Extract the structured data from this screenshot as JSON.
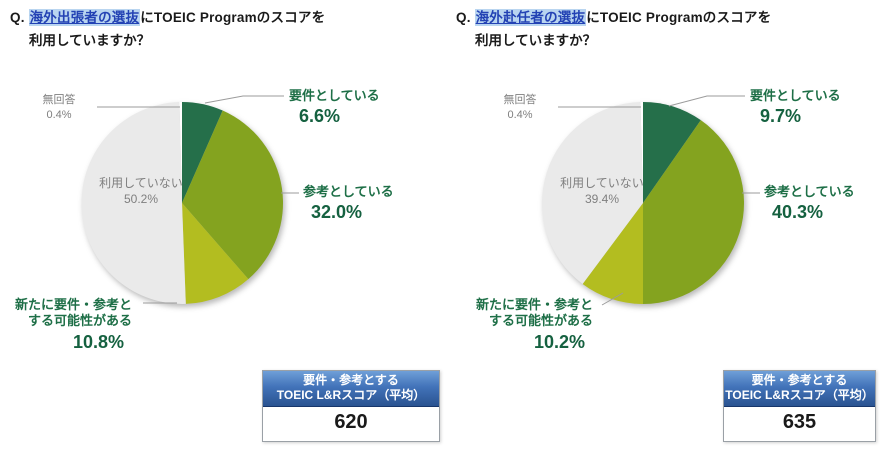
{
  "colors": {
    "slice_required": "#256f4a",
    "slice_reference": "#84a31f",
    "slice_possible": "#b3bd20",
    "slice_not_used": "#eaeaea",
    "slice_no_answer": "#ffffff",
    "label_green": "#1e6f47",
    "percent_green": "#156140",
    "gray_text": "#7f7f7f",
    "highlight_bg": "#b9d5f0",
    "highlight_text": "#2342b4",
    "box_header_blue_top": "#6f9fd8",
    "box_header_blue_bottom": "#2a5391"
  },
  "chart_data": [
    {
      "type": "pie",
      "title": "Q. 海外出張者の選抜にTOEIC Programのスコアを利用していますか？",
      "title_parts": {
        "prefix": "Q. ",
        "highlight": "海外出張者の選抜",
        "rest": "にTOEIC Programのスコアを",
        "line2": "利用していますか？"
      },
      "legend_position": "callout-labels",
      "start_angle": "12-oclock-clockwise",
      "slices": [
        {
          "label": "要件としている",
          "value": 6.6,
          "pct_label": "6.6%",
          "color": "#256f4a"
        },
        {
          "label": "参考としている",
          "value": 32.0,
          "pct_label": "32.0%",
          "color": "#84a31f"
        },
        {
          "label": "新たに要件・参考とする可能性がある",
          "label_line1": "新たに要件・参考と",
          "label_line2": "する可能性がある",
          "value": 10.8,
          "pct_label": "10.8%",
          "color": "#b3bd20"
        },
        {
          "label": "利用していない",
          "value": 50.2,
          "pct_label": "50.2%",
          "color": "#eaeaea"
        },
        {
          "label": "無回答",
          "value": 0.4,
          "pct_label": "0.4%",
          "color": "#ffffff"
        }
      ],
      "score_box": {
        "header_line1": "要件・参考とする",
        "header_line2": "TOEIC L&Rスコア（平均）",
        "value": "620"
      }
    },
    {
      "type": "pie",
      "title": "Q. 海外赴任者の選抜にTOEIC Programのスコアを利用していますか？",
      "title_parts": {
        "prefix": "Q. ",
        "highlight": "海外赴任者の選抜",
        "rest": "にTOEIC Programのスコアを",
        "line2": "利用していますか？"
      },
      "legend_position": "callout-labels",
      "start_angle": "12-oclock-clockwise",
      "slices": [
        {
          "label": "要件としている",
          "value": 9.7,
          "pct_label": "9.7%",
          "color": "#256f4a"
        },
        {
          "label": "参考としている",
          "value": 40.3,
          "pct_label": "40.3%",
          "color": "#84a31f"
        },
        {
          "label": "新たに要件・参考とする可能性がある",
          "label_line1": "新たに要件・参考と",
          "label_line2": "する可能性がある",
          "value": 10.2,
          "pct_label": "10.2%",
          "color": "#b3bd20"
        },
        {
          "label": "利用していない",
          "value": 39.4,
          "pct_label": "39.4%",
          "color": "#eaeaea"
        },
        {
          "label": "無回答",
          "value": 0.4,
          "pct_label": "0.4%",
          "color": "#ffffff"
        }
      ],
      "score_box": {
        "header_line1": "要件・参考とする",
        "header_line2": "TOEIC L&Rスコア（平均）",
        "value": "635"
      }
    }
  ]
}
